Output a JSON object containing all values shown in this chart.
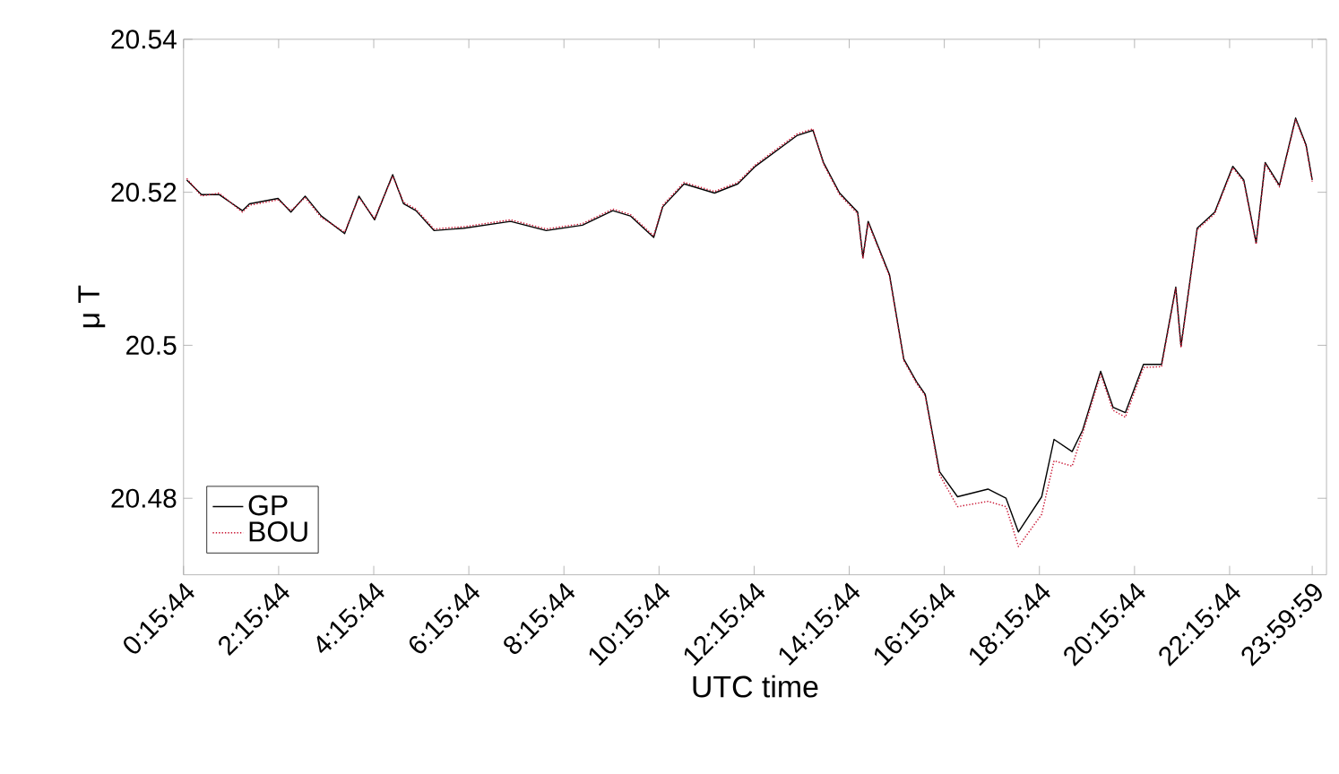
{
  "chart_data": {
    "type": "line",
    "xlabel": "UTC time",
    "ylabel": "μ T",
    "xlim": [
      0.2622,
      24.3
    ],
    "ylim": [
      20.47,
      20.54
    ],
    "xticks": [
      {
        "value": 0.2622,
        "label": "0:15:44"
      },
      {
        "value": 2.2622,
        "label": "2:15:44"
      },
      {
        "value": 4.2622,
        "label": "4:15:44"
      },
      {
        "value": 6.2622,
        "label": "6:15:44"
      },
      {
        "value": 8.2622,
        "label": "8:15:44"
      },
      {
        "value": 10.2622,
        "label": "10:15:44"
      },
      {
        "value": 12.2622,
        "label": "12:15:44"
      },
      {
        "value": 14.2622,
        "label": "14:15:44"
      },
      {
        "value": 16.2622,
        "label": "16:15:44"
      },
      {
        "value": 18.2622,
        "label": "18:15:44"
      },
      {
        "value": 20.2622,
        "label": "20:15:44"
      },
      {
        "value": 22.2622,
        "label": "22:15:44"
      },
      {
        "value": 23.9997,
        "label": "23:59:59"
      }
    ],
    "yticks": [
      20.48,
      20.5,
      20.52,
      20.54
    ],
    "legend": "bottom left",
    "grid": false,
    "series": [
      {
        "name": "GP",
        "color": "#000000",
        "line_style": "solid",
        "x": [
          0.33,
          0.64,
          1.01,
          1.5,
          1.65,
          2.25,
          2.52,
          2.82,
          3.16,
          3.65,
          3.95,
          4.28,
          4.66,
          4.89,
          5.15,
          5.53,
          6.16,
          7.14,
          7.89,
          8.65,
          9.29,
          9.66,
          10.15,
          10.34,
          10.79,
          11.43,
          11.92,
          12.29,
          13.16,
          13.5,
          13.72,
          14.06,
          14.44,
          14.55,
          14.66,
          15.11,
          15.41,
          15.68,
          15.86,
          16.16,
          16.54,
          17.18,
          17.56,
          17.82,
          18.31,
          18.57,
          18.95,
          19.17,
          19.55,
          19.81,
          20.07,
          20.45,
          20.83,
          21.13,
          21.24,
          21.58,
          21.95,
          22.33,
          22.56,
          22.82,
          23.01,
          23.31,
          23.65,
          23.87,
          24.0
        ],
        "values": [
          20.5216,
          20.5197,
          20.5197,
          20.5176,
          20.5185,
          20.5192,
          20.5174,
          20.5195,
          20.5169,
          20.5146,
          20.5195,
          20.5164,
          20.5223,
          20.5185,
          20.5176,
          20.515,
          20.5153,
          20.5162,
          20.515,
          20.5157,
          20.5176,
          20.5169,
          20.5141,
          20.5181,
          20.5211,
          20.5199,
          20.5211,
          20.5234,
          20.5274,
          20.5281,
          20.5239,
          20.5199,
          20.5174,
          20.5115,
          20.5162,
          20.5092,
          20.4982,
          20.4952,
          20.4936,
          20.4835,
          20.4802,
          20.4812,
          20.48,
          20.4756,
          20.4802,
          20.4877,
          20.4861,
          20.4889,
          20.4966,
          20.4919,
          20.4912,
          20.4975,
          20.4975,
          20.5076,
          20.4999,
          20.5153,
          20.5174,
          20.5234,
          20.5216,
          20.5134,
          20.5239,
          20.5209,
          20.5297,
          20.5262,
          20.5216
        ]
      },
      {
        "name": "BOU",
        "color": "#c8102e",
        "line_style": "dotted",
        "x": [
          0.33,
          0.64,
          1.01,
          1.5,
          1.65,
          2.25,
          2.52,
          2.82,
          3.16,
          3.65,
          3.95,
          4.28,
          4.66,
          4.89,
          5.15,
          5.53,
          6.16,
          7.14,
          7.89,
          8.65,
          9.29,
          9.66,
          10.15,
          10.34,
          10.79,
          11.43,
          11.92,
          12.29,
          13.16,
          13.5,
          13.72,
          14.06,
          14.44,
          14.55,
          14.66,
          15.11,
          15.41,
          15.68,
          15.86,
          16.16,
          16.54,
          17.18,
          17.56,
          17.82,
          18.31,
          18.57,
          18.95,
          19.17,
          19.55,
          19.81,
          20.07,
          20.45,
          20.83,
          21.13,
          21.24,
          21.58,
          21.95,
          22.33,
          22.56,
          22.82,
          23.01,
          23.31,
          23.65,
          23.87,
          24.0
        ],
        "values": [
          20.5218,
          20.5195,
          20.5199,
          20.5174,
          20.5183,
          20.519,
          20.5176,
          20.5193,
          20.5167,
          20.5148,
          20.5193,
          20.5166,
          20.5221,
          20.5187,
          20.5178,
          20.5152,
          20.5155,
          20.5164,
          20.5152,
          20.5159,
          20.5178,
          20.5171,
          20.5143,
          20.5183,
          20.5213,
          20.5201,
          20.5213,
          20.5236,
          20.5276,
          20.5283,
          20.5237,
          20.5197,
          20.5172,
          20.5113,
          20.516,
          20.509,
          20.498,
          20.495,
          20.4934,
          20.4831,
          20.4789,
          20.4796,
          20.4789,
          20.4737,
          20.4779,
          20.4849,
          20.4842,
          20.4885,
          20.4962,
          20.4915,
          20.4906,
          20.4971,
          20.4972,
          20.5074,
          20.4997,
          20.5151,
          20.5172,
          20.5232,
          20.5214,
          20.5132,
          20.5237,
          20.5207,
          20.5295,
          20.526,
          20.5214
        ]
      }
    ]
  }
}
